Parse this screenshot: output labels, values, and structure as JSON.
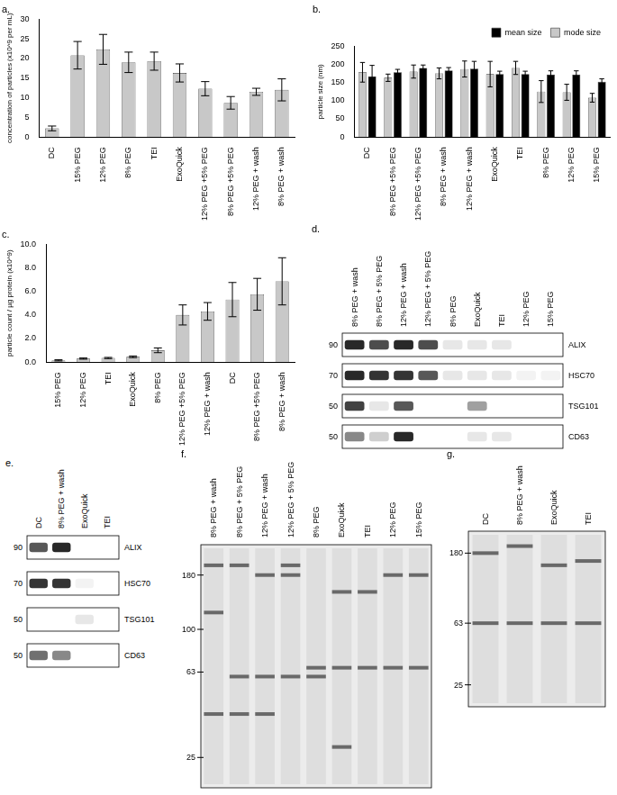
{
  "chart_data": [
    {
      "type": "bar",
      "title": "a.",
      "y_label": "concentration of particles (x10^9 per mL)",
      "categories": [
        "DC",
        "15% PEG",
        "12% PEG",
        "8% PEG",
        "TEI",
        "ExoQuick",
        "12% PEG +5% PEG",
        "8% PEG +5% PEG",
        "12% PEG + wash",
        "8% PEG + wash"
      ],
      "values": [
        2.2,
        20.8,
        22.3,
        19,
        19.3,
        16.3,
        12.3,
        8.7,
        11.5,
        12
      ],
      "errors": [
        0.6,
        3.5,
        3.8,
        2.6,
        2.3,
        2.3,
        1.8,
        1.6,
        0.9,
        2.8
      ],
      "color": "#c8c8c8",
      "ylim": [
        0,
        30
      ],
      "yticks": [
        0,
        5,
        10,
        15,
        20,
        25,
        30
      ],
      "grid": false
    },
    {
      "type": "bar",
      "title": "b.",
      "y_label": "particle size (nm)",
      "categories": [
        "DC",
        "8% PEG +5% PEG",
        "12% PEG +5% PEG",
        "8% PEG + wash",
        "12% PEG + wash",
        "ExoQuick",
        "TEI",
        "8% PEG",
        "12% PEG",
        "15% PEG"
      ],
      "series": [
        {
          "name": "mode size",
          "color": "#c8c8c8",
          "values": [
            178,
            163,
            180,
            175,
            187,
            173,
            190,
            125,
            123,
            108
          ],
          "errors": [
            27,
            10,
            18,
            15,
            22,
            35,
            18,
            30,
            22,
            12
          ]
        },
        {
          "name": "mean size",
          "color": "#000000",
          "values": [
            167,
            178,
            190,
            183,
            188,
            173,
            173,
            172,
            172,
            152
          ],
          "errors": [
            30,
            8,
            8,
            8,
            20,
            8,
            8,
            10,
            10,
            8
          ]
        }
      ],
      "legend": "top-right",
      "ylim": [
        0,
        250
      ],
      "yticks": [
        0,
        50,
        100,
        150,
        200,
        250
      ],
      "grid": false
    },
    {
      "type": "bar",
      "title": "c.",
      "y_label": "particle count / µg protein (x10^9)",
      "categories": [
        "15% PEG",
        "12% PEG",
        "TEI",
        "ExoQuick",
        "8% PEG",
        "12% PEG +5% PEG",
        "12% PEG + wash",
        "DC",
        "8% PEG +5% PEG",
        "8% PEG + wash"
      ],
      "values": [
        0.15,
        0.3,
        0.35,
        0.45,
        1.0,
        4.0,
        4.3,
        5.3,
        5.75,
        6.85
      ],
      "errors": [
        0.05,
        0.05,
        0.05,
        0.07,
        0.2,
        0.85,
        0.75,
        1.45,
        1.35,
        2.0
      ],
      "color": "#c8c8c8",
      "ylim": [
        0,
        10
      ],
      "yticks": [
        {
          "value": 0,
          "label": "0.0"
        },
        {
          "value": 2,
          "label": "2.0"
        },
        {
          "value": 4,
          "label": "4.0"
        },
        {
          "value": 6,
          "label": "6.0"
        },
        {
          "value": 8,
          "label": "8.0"
        },
        {
          "value": 10,
          "label": "10.0"
        }
      ],
      "grid": false
    }
  ],
  "blots": [
    {
      "type": "western_blot",
      "title": "d.",
      "lanes": [
        "8% PEG + wash",
        "8% PEG + 5% PEG",
        "12% PEG + wash",
        "12% PEG + 5% PEG",
        "8% PEG",
        "ExoQuick",
        "TEI",
        "12% PEG",
        "15% PEG"
      ],
      "rows": [
        {
          "protein": "ALIX",
          "kDa": 90,
          "intensity": [
            0.9,
            0.75,
            0.9,
            0.75,
            0.1,
            0.1,
            0.1,
            0,
            0
          ]
        },
        {
          "protein": "HSC70",
          "kDa": 70,
          "intensity": [
            0.9,
            0.85,
            0.85,
            0.7,
            0.1,
            0.1,
            0.1,
            0.05,
            0.05
          ]
        },
        {
          "protein": "TSG101",
          "kDa": 50,
          "intensity": [
            0.8,
            0.1,
            0.7,
            0,
            0,
            0.4,
            0,
            0,
            0
          ]
        },
        {
          "protein": "CD63",
          "kDa": 50,
          "intensity": [
            0.5,
            0.2,
            0.9,
            0,
            0,
            0.1,
            0.1,
            0,
            0
          ]
        }
      ]
    },
    {
      "type": "western_blot",
      "title": "e.",
      "lanes": [
        "DC",
        "8% PEG + wash",
        "ExoQuick",
        "TEI"
      ],
      "rows": [
        {
          "protein": "ALIX",
          "kDa": 90,
          "intensity": [
            0.7,
            0.9,
            0,
            0
          ]
        },
        {
          "protein": "HSC70",
          "kDa": 70,
          "intensity": [
            0.85,
            0.85,
            0.05,
            0
          ]
        },
        {
          "protein": "TSG101",
          "kDa": 50,
          "intensity": [
            0,
            0,
            0.1,
            0
          ]
        },
        {
          "protein": "CD63",
          "kDa": 50,
          "intensity": [
            0.6,
            0.5,
            0,
            0
          ]
        }
      ]
    },
    {
      "type": "gel",
      "title": "f.",
      "lanes": [
        "8% PEG + wash",
        "8% PEG + 5% PEG",
        "12% PEG + wash",
        "12% PEG + 5% PEG",
        "8% PEG",
        "ExoQuick",
        "TEI",
        "12% PEG",
        "15% PEG"
      ],
      "markers": [
        180,
        100,
        63,
        25
      ],
      "bands": [
        [
          200,
          120,
          40
        ],
        [
          200,
          60,
          40
        ],
        [
          180,
          60,
          40
        ],
        [
          200,
          180,
          60
        ],
        [
          66,
          60
        ],
        [
          150,
          66,
          28
        ],
        [
          150,
          66
        ],
        [
          180,
          66
        ],
        [
          180,
          66
        ]
      ],
      "ylim": [
        18,
        250
      ],
      "log": "y"
    },
    {
      "type": "gel",
      "title": "g.",
      "lanes": [
        "DC",
        "8% PEG + wash",
        "ExoQuick",
        "TEI"
      ],
      "markers": [
        180,
        63,
        25
      ],
      "bands": [
        [
          180,
          63
        ],
        [
          200,
          63
        ],
        [
          150,
          63
        ],
        [
          160,
          63
        ]
      ],
      "ylim": [
        18,
        250
      ],
      "log": "y"
    }
  ]
}
